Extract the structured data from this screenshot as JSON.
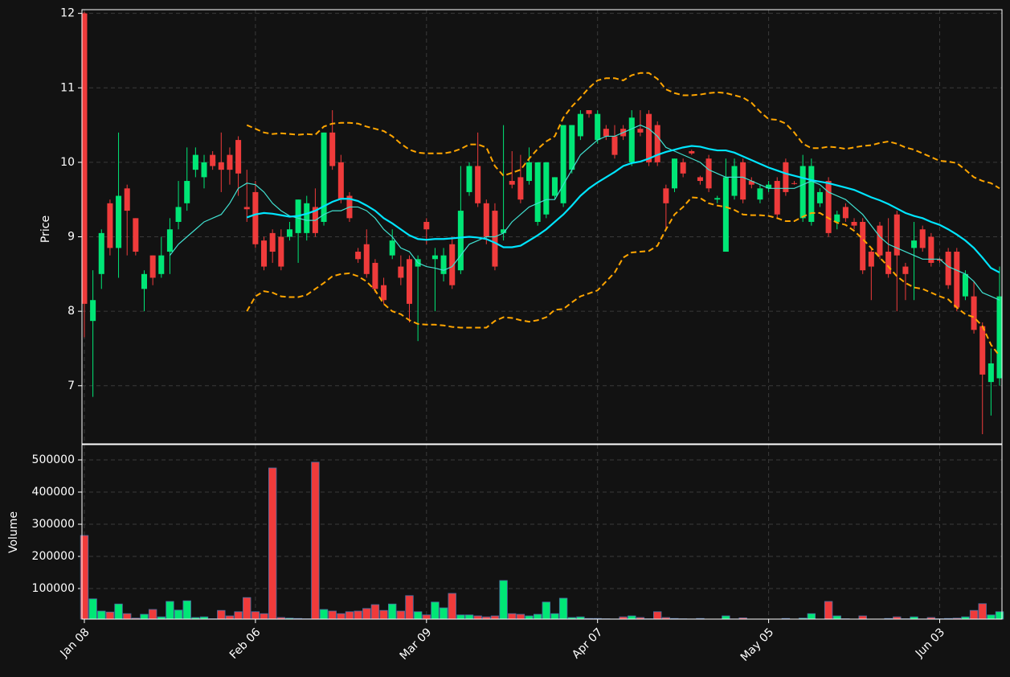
{
  "chart_data": {
    "type": "candlestick",
    "ylabel": "Price",
    "volume_label": "Volume",
    "ylim": [
      6.22,
      12.05
    ],
    "yticks": [
      7,
      8,
      9,
      10,
      11,
      12
    ],
    "volume_ylim": [
      5000,
      547500
    ],
    "volume_yticks": [
      100000,
      200000,
      300000,
      400000,
      500000
    ],
    "grid": true,
    "up_color": "#00e676",
    "down_color": "#ef3b3b",
    "categories": [
      "Jan 08",
      null,
      null,
      null,
      null,
      null,
      null,
      null,
      null,
      null,
      null,
      null,
      null,
      null,
      null,
      null,
      null,
      null,
      null,
      null,
      "Feb 06",
      null,
      null,
      null,
      null,
      null,
      null,
      null,
      null,
      null,
      null,
      null,
      null,
      null,
      null,
      null,
      null,
      null,
      null,
      null,
      "Mar 09",
      null,
      null,
      null,
      null,
      null,
      null,
      null,
      null,
      null,
      null,
      null,
      null,
      null,
      null,
      null,
      null,
      null,
      null,
      null,
      "Apr 07",
      null,
      null,
      null,
      null,
      null,
      null,
      null,
      null,
      null,
      null,
      null,
      null,
      null,
      null,
      null,
      null,
      null,
      null,
      null,
      "May 05",
      null,
      null,
      null,
      null,
      null,
      null,
      null,
      null,
      null,
      null,
      null,
      null,
      null,
      null,
      null,
      null,
      null,
      null,
      null,
      "Jun 03",
      null,
      null,
      null,
      null,
      null,
      null,
      null
    ],
    "open": [
      12.0,
      7.87,
      8.5,
      9.45,
      8.85,
      9.65,
      9.25,
      8.3,
      8.75,
      8.5,
      8.8,
      9.2,
      9.45,
      9.9,
      9.8,
      10.1,
      10.0,
      10.1,
      10.3,
      9.4,
      9.6,
      8.95,
      9.05,
      9.0,
      9.0,
      9.05,
      9.05,
      9.4,
      9.2,
      10.4,
      10.0,
      9.55,
      8.8,
      8.9,
      8.65,
      8.35,
      8.75,
      8.6,
      8.7,
      8.6,
      9.2,
      8.7,
      8.5,
      8.9,
      8.55,
      9.6,
      9.95,
      9.45,
      9.35,
      9.05,
      9.75,
      9.8,
      9.75,
      9.2,
      9.3,
      9.55,
      9.45,
      9.9,
      10.35,
      10.7,
      10.3,
      10.45,
      10.35,
      10.45,
      10.0,
      10.45,
      10.65,
      10.5,
      9.65,
      9.65,
      10.0,
      10.15,
      9.8,
      10.05,
      9.5,
      8.8,
      9.55,
      10.0,
      9.75,
      9.5,
      9.65,
      9.75,
      10.0,
      9.72,
      9.25,
      9.2,
      9.45,
      9.75,
      9.2,
      9.4,
      9.2,
      9.2,
      8.8,
      9.15,
      8.8,
      9.3,
      8.6,
      8.85,
      9.1,
      9.0,
      8.7,
      8.8,
      8.8,
      8.2,
      8.2,
      7.8,
      7.05,
      7.1
    ],
    "high": [
      12.02,
      8.55,
      9.1,
      9.5,
      10.4,
      9.7,
      9.25,
      8.55,
      8.75,
      9.0,
      9.25,
      9.75,
      10.2,
      10.2,
      10.1,
      10.15,
      10.4,
      10.2,
      10.35,
      9.9,
      9.75,
      9.0,
      9.1,
      9.1,
      9.2,
      9.5,
      9.55,
      9.65,
      10.4,
      10.7,
      10.1,
      9.6,
      8.85,
      9.1,
      8.7,
      8.45,
      9.1,
      8.75,
      8.75,
      8.75,
      9.25,
      8.85,
      8.85,
      9.0,
      9.95,
      10.0,
      10.4,
      9.5,
      9.45,
      10.5,
      10.15,
      10.1,
      10.2,
      10.0,
      10.0,
      9.8,
      10.5,
      10.5,
      10.7,
      10.7,
      10.7,
      10.5,
      10.5,
      10.5,
      10.7,
      10.7,
      10.7,
      10.55,
      9.7,
      10.05,
      10.05,
      10.17,
      9.82,
      10.1,
      9.55,
      10.05,
      10.05,
      10.05,
      9.8,
      9.7,
      9.75,
      9.8,
      10.05,
      9.75,
      10.1,
      10.05,
      9.65,
      9.8,
      9.35,
      9.45,
      9.25,
      9.25,
      8.85,
      9.2,
      9.25,
      9.35,
      8.65,
      9.2,
      9.15,
      9.05,
      8.72,
      8.85,
      8.85,
      8.55,
      8.4,
      7.85,
      7.5,
      8.6
    ],
    "low": [
      7.65,
      6.85,
      8.3,
      8.75,
      8.45,
      8.75,
      8.75,
      8.0,
      8.35,
      8.45,
      8.5,
      9.1,
      9.35,
      9.8,
      9.65,
      9.9,
      9.6,
      9.7,
      9.55,
      9.2,
      8.85,
      8.55,
      8.65,
      8.55,
      8.95,
      8.65,
      8.95,
      9.0,
      9.15,
      9.9,
      9.45,
      9.2,
      8.65,
      8.45,
      8.25,
      8.1,
      8.7,
      8.35,
      7.85,
      7.6,
      8.9,
      8.0,
      8.4,
      8.3,
      8.5,
      9.55,
      9.4,
      8.9,
      8.55,
      8.95,
      9.65,
      9.45,
      9.7,
      9.15,
      9.25,
      9.5,
      9.4,
      9.85,
      10.3,
      10.6,
      10.25,
      10.3,
      10.05,
      10.3,
      9.95,
      10.35,
      9.95,
      9.95,
      9.1,
      9.6,
      9.8,
      10.1,
      9.7,
      9.6,
      9.45,
      8.8,
      9.5,
      9.45,
      9.65,
      9.45,
      9.6,
      9.25,
      9.55,
      9.7,
      9.2,
      9.15,
      9.4,
      9.0,
      9.1,
      9.2,
      9.1,
      8.5,
      8.15,
      8.7,
      8.45,
      8.0,
      8.15,
      8.15,
      8.8,
      8.6,
      8.65,
      8.3,
      8.0,
      8.15,
      7.7,
      6.35,
      6.6,
      7.0
    ],
    "close": [
      8.1,
      8.15,
      9.05,
      8.85,
      9.55,
      9.35,
      8.8,
      8.5,
      8.45,
      8.75,
      9.1,
      9.4,
      9.75,
      10.1,
      10.0,
      9.95,
      9.9,
      9.9,
      9.85,
      9.37,
      8.9,
      8.6,
      8.8,
      8.6,
      9.1,
      9.5,
      9.45,
      9.05,
      10.4,
      9.95,
      9.5,
      9.25,
      8.7,
      8.5,
      8.3,
      8.15,
      8.95,
      8.45,
      8.1,
      8.7,
      9.1,
      8.75,
      8.75,
      8.35,
      9.35,
      9.95,
      9.45,
      9.0,
      8.6,
      9.1,
      9.7,
      9.5,
      10.0,
      10.0,
      10.0,
      9.8,
      10.5,
      10.5,
      10.65,
      10.65,
      10.65,
      10.35,
      10.1,
      10.35,
      10.6,
      10.4,
      10.0,
      10.0,
      9.45,
      10.05,
      9.85,
      10.12,
      9.75,
      9.65,
      9.52,
      9.8,
      9.95,
      9.5,
      9.7,
      9.65,
      9.7,
      9.3,
      9.6,
      9.71,
      9.95,
      9.95,
      9.6,
      9.05,
      9.3,
      9.25,
      9.15,
      8.55,
      8.6,
      8.75,
      8.5,
      8.75,
      8.5,
      8.95,
      8.85,
      8.65,
      8.68,
      8.35,
      8.05,
      8.5,
      7.75,
      7.15,
      7.3,
      8.2
    ],
    "volume": [
      265000,
      68000,
      30000,
      27000,
      52000,
      22000,
      8000,
      20000,
      35000,
      12000,
      60000,
      33000,
      62000,
      10000,
      12000,
      6000,
      32000,
      15000,
      28000,
      72000,
      28000,
      22000,
      475000,
      10000,
      8000,
      7000,
      6000,
      493000,
      35000,
      30000,
      22000,
      28000,
      30000,
      38000,
      50000,
      32000,
      52000,
      30000,
      78000,
      28000,
      18000,
      58000,
      40000,
      85000,
      18000,
      18000,
      15000,
      12000,
      15000,
      125000,
      22000,
      20000,
      15000,
      20000,
      58000,
      22000,
      70000,
      10000,
      12000,
      7000,
      7000,
      6000,
      5500,
      12000,
      15000,
      10000,
      6000,
      28000,
      10000,
      7000,
      6000,
      5500,
      7000,
      5000,
      5000,
      15000,
      5500,
      9000,
      5000,
      5000,
      5000,
      5000,
      7000,
      5000,
      8000,
      22000,
      5000,
      60000,
      15000,
      6000,
      5000,
      15000,
      5000,
      5000,
      7000,
      12000,
      6000,
      12000,
      5500,
      10000,
      6000,
      7000,
      8000,
      12000,
      32000,
      53000,
      18000,
      28000
    ],
    "overlays": [
      {
        "color": "#40e0d0",
        "width": 1.2,
        "style": "solid",
        "values": [
          null,
          null,
          null,
          null,
          null,
          null,
          null,
          null,
          null,
          null,
          8.75,
          8.9,
          9.0,
          9.1,
          9.2,
          9.25,
          9.3,
          9.45,
          9.65,
          9.72,
          9.7,
          9.6,
          9.45,
          9.35,
          9.28,
          9.25,
          9.22,
          9.22,
          9.3,
          9.35,
          9.35,
          9.4,
          9.4,
          9.35,
          9.25,
          9.1,
          9.0,
          8.85,
          8.8,
          8.65,
          8.6,
          8.58,
          8.55,
          8.6,
          8.75,
          8.9,
          8.95,
          9.0,
          9.0,
          9.05,
          9.2,
          9.3,
          9.4,
          9.45,
          9.5,
          9.5,
          9.7,
          9.9,
          10.1,
          10.2,
          10.3,
          10.35,
          10.35,
          10.4,
          10.45,
          10.5,
          10.45,
          10.35,
          10.2,
          10.15,
          10.1,
          10.05,
          10.0,
          9.9,
          9.85,
          9.8,
          9.8,
          9.8,
          9.75,
          9.7,
          9.65,
          9.65,
          9.65,
          9.65,
          9.7,
          9.75,
          9.7,
          9.6,
          9.55,
          9.5,
          9.4,
          9.3,
          9.15,
          9.0,
          8.9,
          8.85,
          8.8,
          8.75,
          8.7,
          8.7,
          8.7,
          8.6,
          8.55,
          8.5,
          8.4,
          8.25,
          8.2,
          8.15
        ]
      },
      {
        "color": "#00e5ff",
        "width": 2.2,
        "style": "solid",
        "values": [
          null,
          null,
          null,
          null,
          null,
          null,
          null,
          null,
          null,
          null,
          null,
          null,
          null,
          null,
          null,
          null,
          null,
          null,
          null,
          9.26,
          9.3,
          9.32,
          9.31,
          9.29,
          9.27,
          9.28,
          9.31,
          9.35,
          9.41,
          9.47,
          9.51,
          9.51,
          9.48,
          9.42,
          9.35,
          9.25,
          9.18,
          9.1,
          9.02,
          8.97,
          8.96,
          8.97,
          8.97,
          8.98,
          8.99,
          9.0,
          8.99,
          8.97,
          8.92,
          8.86,
          8.86,
          8.88,
          8.95,
          9.02,
          9.1,
          9.2,
          9.3,
          9.42,
          9.55,
          9.65,
          9.73,
          9.8,
          9.87,
          9.95,
          9.99,
          10.01,
          10.05,
          10.1,
          10.14,
          10.17,
          10.2,
          10.22,
          10.21,
          10.18,
          10.16,
          10.16,
          10.13,
          10.08,
          10.03,
          9.98,
          9.93,
          9.89,
          9.85,
          9.82,
          9.79,
          9.76,
          9.74,
          9.72,
          9.69,
          9.66,
          9.63,
          9.58,
          9.53,
          9.49,
          9.44,
          9.38,
          9.32,
          9.28,
          9.25,
          9.2,
          9.16,
          9.1,
          9.03,
          8.95,
          8.85,
          8.72,
          8.58,
          8.52
        ]
      },
      {
        "color": "#ffa500",
        "width": 2,
        "style": "dashed",
        "values": [
          null,
          null,
          null,
          null,
          null,
          null,
          null,
          null,
          null,
          null,
          null,
          null,
          null,
          null,
          null,
          null,
          null,
          null,
          null,
          10.5,
          10.45,
          10.4,
          10.38,
          10.39,
          10.38,
          10.37,
          10.38,
          10.37,
          10.48,
          10.52,
          10.53,
          10.53,
          10.52,
          10.48,
          10.45,
          10.42,
          10.35,
          10.25,
          10.17,
          10.13,
          10.12,
          10.12,
          10.12,
          10.14,
          10.18,
          10.24,
          10.24,
          10.2,
          9.95,
          9.82,
          9.86,
          9.9,
          10.05,
          10.18,
          10.28,
          10.35,
          10.6,
          10.75,
          10.87,
          11.0,
          11.1,
          11.13,
          11.13,
          11.1,
          11.17,
          11.2,
          11.2,
          11.12,
          10.98,
          10.93,
          10.9,
          10.9,
          10.91,
          10.93,
          10.94,
          10.93,
          10.9,
          10.87,
          10.8,
          10.68,
          10.58,
          10.57,
          10.52,
          10.4,
          10.25,
          10.19,
          10.19,
          10.21,
          10.2,
          10.18,
          10.2,
          10.22,
          10.23,
          10.26,
          10.28,
          10.25,
          10.2,
          10.17,
          10.12,
          10.07,
          10.02,
          10.01,
          9.99,
          9.9,
          9.8,
          9.75,
          9.72,
          9.65
        ]
      },
      {
        "color": "#ffa500",
        "width": 2,
        "style": "dashed",
        "values": [
          null,
          null,
          null,
          null,
          null,
          null,
          null,
          null,
          null,
          null,
          null,
          null,
          null,
          null,
          null,
          null,
          null,
          null,
          null,
          8.0,
          8.2,
          8.27,
          8.25,
          8.2,
          8.19,
          8.19,
          8.22,
          8.3,
          8.38,
          8.47,
          8.5,
          8.51,
          8.47,
          8.4,
          8.28,
          8.1,
          8.0,
          7.96,
          7.88,
          7.83,
          7.82,
          7.82,
          7.81,
          7.79,
          7.78,
          7.78,
          7.78,
          7.78,
          7.87,
          7.92,
          7.91,
          7.88,
          7.86,
          7.88,
          7.92,
          8.02,
          8.03,
          8.12,
          8.2,
          8.24,
          8.28,
          8.4,
          8.52,
          8.72,
          8.79,
          8.8,
          8.81,
          8.88,
          9.1,
          9.3,
          9.4,
          9.53,
          9.52,
          9.45,
          9.42,
          9.4,
          9.36,
          9.3,
          9.29,
          9.29,
          9.28,
          9.25,
          9.21,
          9.21,
          9.27,
          9.32,
          9.32,
          9.25,
          9.19,
          9.16,
          9.08,
          8.97,
          8.85,
          8.72,
          8.6,
          8.47,
          8.38,
          8.32,
          8.3,
          8.25,
          8.2,
          8.16,
          8.05,
          7.96,
          7.92,
          7.8,
          7.55,
          7.4
        ]
      }
    ]
  }
}
